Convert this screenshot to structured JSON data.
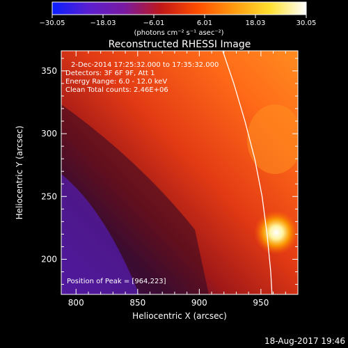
{
  "colorbar": {
    "ticks": [
      "−30.05",
      "−18.03",
      "−6.01",
      "6.01",
      "18.03",
      "30.05"
    ],
    "range": [
      -30.05,
      30.05
    ],
    "units": "(photons cm⁻² s⁻¹ asec⁻²)",
    "colors": [
      "#0a1fff",
      "#5a1fd0",
      "#7a1aa0",
      "#c01818",
      "#ff4d00",
      "#ff9a10",
      "#ffe030",
      "#ffffff"
    ]
  },
  "chart_data": {
    "type": "heatmap",
    "title": "Reconstructed RHESSI Image",
    "xlabel": "Heliocentric X (arcsec)",
    "ylabel": "Heliocentric Y (arcsec)",
    "xlim": [
      788,
      980
    ],
    "ylim": [
      172,
      366
    ],
    "x_ticks": [
      800,
      850,
      900,
      950
    ],
    "y_ticks": [
      200,
      250,
      300,
      350
    ],
    "annotations": [
      "2-Dec-2014 17:25:32.000 to 17:35:32.000",
      "Detectors: 3F 6F 9F, Att 1",
      "Energy Range: 6.0 - 12.0 keV",
      "Clean    Total counts: 2.46E+06"
    ],
    "peak_label": "Position of Peak = [964,223]",
    "peak": [
      964,
      223
    ],
    "limb_curve": [
      [
        919,
        366
      ],
      [
        928,
        340
      ],
      [
        937,
        310
      ],
      [
        945,
        280
      ],
      [
        951,
        250
      ],
      [
        955,
        220
      ],
      [
        958,
        190
      ],
      [
        959,
        172
      ]
    ]
  },
  "footer": {
    "timestamp": "18-Aug-2017 19:46"
  }
}
